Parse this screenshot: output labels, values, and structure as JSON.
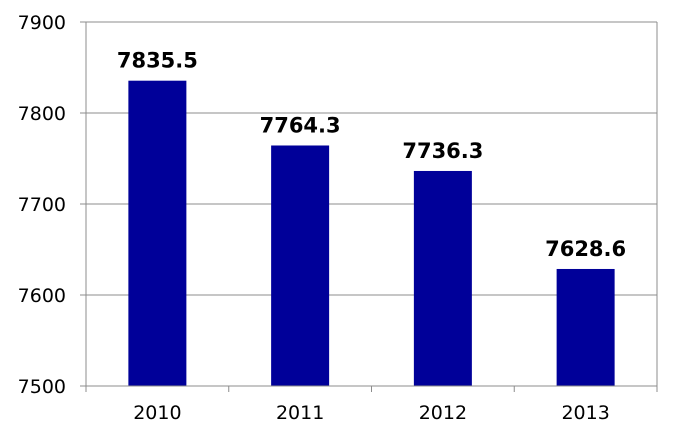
{
  "chart_data": {
    "type": "bar",
    "categories": [
      "2010",
      "2011",
      "2012",
      "2013"
    ],
    "values": [
      7835.5,
      7764.3,
      7736.3,
      7628.6
    ],
    "data_labels": [
      "7835.5",
      "7764.3",
      "7736.3",
      "7628.6"
    ],
    "y_ticks": [
      "7500",
      "7600",
      "7700",
      "7800",
      "7900"
    ],
    "ylim": [
      7500,
      7900
    ],
    "title": "",
    "xlabel": "",
    "ylabel": "",
    "grid": true,
    "legend": "none",
    "bar_color": "#000099",
    "gridline_color": "#8c8c8c"
  }
}
